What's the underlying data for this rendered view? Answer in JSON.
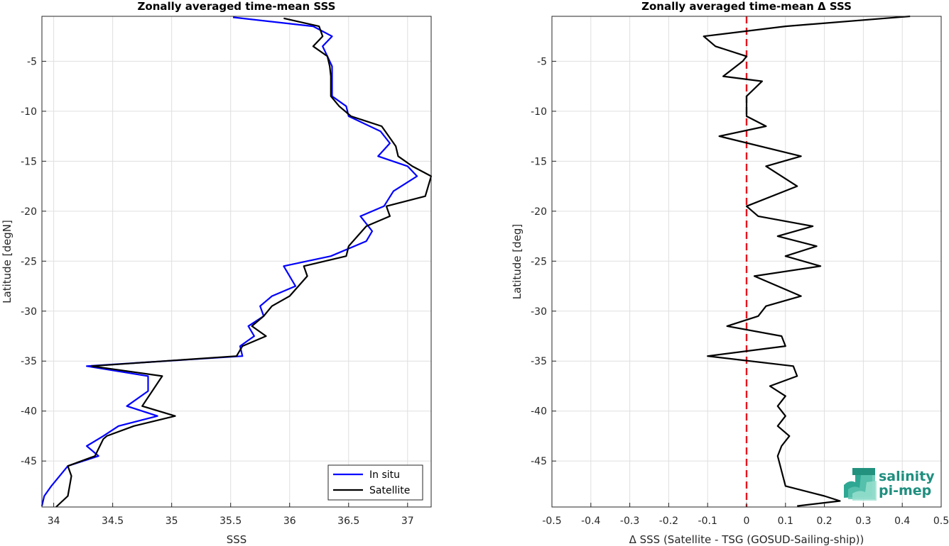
{
  "chart_data": [
    {
      "type": "line",
      "title": "Zonally averaged time-mean SSS",
      "xlabel": "SSS",
      "ylabel": "Latitude [degN]",
      "xlim": [
        33.9,
        37.2
      ],
      "ylim": [
        -49.6,
        -0.5
      ],
      "xticks": [
        34,
        34.5,
        35,
        35.5,
        36,
        36.5,
        37
      ],
      "xtick_labels": [
        "34",
        "34.5",
        "35",
        "35.5",
        "36",
        "36.5",
        "37"
      ],
      "yticks": [
        -5,
        -10,
        -15,
        -20,
        -25,
        -30,
        -35,
        -40,
        -45
      ],
      "ytick_labels": [
        "-5",
        "-10",
        "-15",
        "-20",
        "-25",
        "-30",
        "-35",
        "-40",
        "-45"
      ],
      "grid": true,
      "legend": "bottom-right",
      "series": [
        {
          "name": "In situ",
          "color": "#0000ff",
          "x": [
            35.52,
            36.2,
            36.36,
            36.28,
            36.32,
            36.36,
            36.36,
            36.36,
            36.48,
            36.5,
            36.77,
            36.85,
            36.75,
            37.0,
            37.08,
            36.88,
            36.8,
            36.6,
            36.7,
            36.65,
            36.35,
            35.95,
            36.05,
            35.85,
            35.75,
            35.78,
            35.65,
            35.7,
            35.58,
            35.6,
            34.28,
            34.8,
            34.8,
            34.62,
            34.88,
            34.55,
            34.42,
            34.28,
            34.38,
            34.12,
            33.98,
            33.92,
            33.9
          ],
          "y": [
            -0.6,
            -1.5,
            -2.5,
            -3.5,
            -4.5,
            -5.5,
            -6.5,
            -8.5,
            -9.5,
            -10.5,
            -12.0,
            -13.2,
            -14.5,
            -15.5,
            -16.5,
            -18.0,
            -19.5,
            -20.5,
            -22.0,
            -23.0,
            -24.5,
            -25.5,
            -27.5,
            -28.5,
            -29.5,
            -30.5,
            -31.5,
            -32.5,
            -33.5,
            -34.5,
            -35.5,
            -36.5,
            -38.0,
            -39.5,
            -40.5,
            -41.5,
            -42.5,
            -43.5,
            -44.5,
            -45.5,
            -47.5,
            -48.5,
            -49.5
          ]
        },
        {
          "name": "Satellite",
          "color": "#000000",
          "x": [
            35.95,
            36.25,
            36.28,
            36.2,
            36.32,
            36.34,
            36.35,
            36.35,
            36.42,
            36.52,
            36.78,
            36.9,
            36.92,
            37.04,
            37.2,
            37.15,
            36.82,
            36.85,
            36.65,
            36.5,
            36.48,
            36.12,
            36.15,
            36.0,
            35.85,
            35.78,
            35.68,
            35.8,
            35.6,
            35.55,
            34.32,
            34.92,
            34.75,
            35.03,
            34.68,
            34.45,
            34.42,
            34.35,
            34.12,
            34.15,
            34.12,
            34.02
          ],
          "y": [
            -0.7,
            -1.5,
            -2.5,
            -3.5,
            -4.5,
            -5.5,
            -6.5,
            -8.5,
            -9.5,
            -10.5,
            -11.5,
            -13.5,
            -14.5,
            -15.5,
            -16.5,
            -18.5,
            -19.5,
            -20.5,
            -21.5,
            -23.5,
            -24.5,
            -25.5,
            -26.5,
            -28.5,
            -29.5,
            -30.5,
            -31.5,
            -32.5,
            -33.5,
            -34.5,
            -35.5,
            -36.5,
            -39.5,
            -40.5,
            -41.5,
            -42.5,
            -42.8,
            -44.5,
            -45.5,
            -46.5,
            -48.5,
            -49.6
          ]
        }
      ]
    },
    {
      "type": "line",
      "title": "Zonally averaged time-mean Δ SSS",
      "xlabel": "Δ SSS (Satellite - TSG (GOSUD-Sailing-ship))",
      "ylabel": "Latitude [deg]",
      "xlim": [
        -0.5,
        0.5
      ],
      "ylim": [
        -49.6,
        -0.5
      ],
      "xticks": [
        -0.5,
        -0.4,
        -0.3,
        -0.2,
        -0.1,
        0,
        0.1,
        0.2,
        0.3,
        0.4,
        0.5
      ],
      "xtick_labels": [
        "-0.5",
        "-0.4",
        "-0.3",
        "-0.2",
        "-0.1",
        "0",
        "0.1",
        "0.2",
        "0.3",
        "0.4",
        "0.5"
      ],
      "yticks": [
        -5,
        -10,
        -15,
        -20,
        -25,
        -30,
        -35,
        -40,
        -45
      ],
      "ytick_labels": [
        "-5",
        "-10",
        "-15",
        "-20",
        "-25",
        "-30",
        "-35",
        "-40",
        "-45"
      ],
      "grid": true,
      "zero_line_color": "#e6141e",
      "series": [
        {
          "color": "#000000",
          "x": [
            0.42,
            0.1,
            -0.11,
            -0.08,
            0.0,
            -0.01,
            -0.06,
            0.04,
            0.0,
            0.0,
            0.05,
            -0.07,
            0.14,
            0.05,
            0.13,
            0.0,
            0.03,
            0.17,
            0.08,
            0.18,
            0.1,
            0.19,
            0.02,
            0.14,
            0.05,
            0.03,
            -0.05,
            0.09,
            0.1,
            -0.1,
            0.12,
            0.13,
            0.06,
            0.1,
            0.08,
            0.1,
            0.08,
            0.11,
            0.09,
            0.08,
            0.1,
            0.2,
            0.24,
            0.13
          ],
          "y": [
            -0.5,
            -1.5,
            -2.5,
            -3.5,
            -4.5,
            -5.0,
            -6.5,
            -7.0,
            -8.5,
            -10.5,
            -11.5,
            -12.5,
            -14.5,
            -15.5,
            -17.5,
            -19.5,
            -20.5,
            -21.5,
            -22.5,
            -23.5,
            -24.5,
            -25.5,
            -26.5,
            -28.5,
            -29.5,
            -30.5,
            -31.5,
            -32.5,
            -33.5,
            -34.5,
            -35.5,
            -36.5,
            -37.5,
            -38.5,
            -39.5,
            -40.5,
            -41.5,
            -42.5,
            -43.5,
            -44.5,
            -47.5,
            -48.5,
            -49.0,
            -49.5
          ]
        }
      ]
    }
  ],
  "legend": {
    "insitu_label": "In situ",
    "satellite_label": "Satellite"
  },
  "logo": {
    "line1": "salinity",
    "line2": "pi-mep"
  }
}
